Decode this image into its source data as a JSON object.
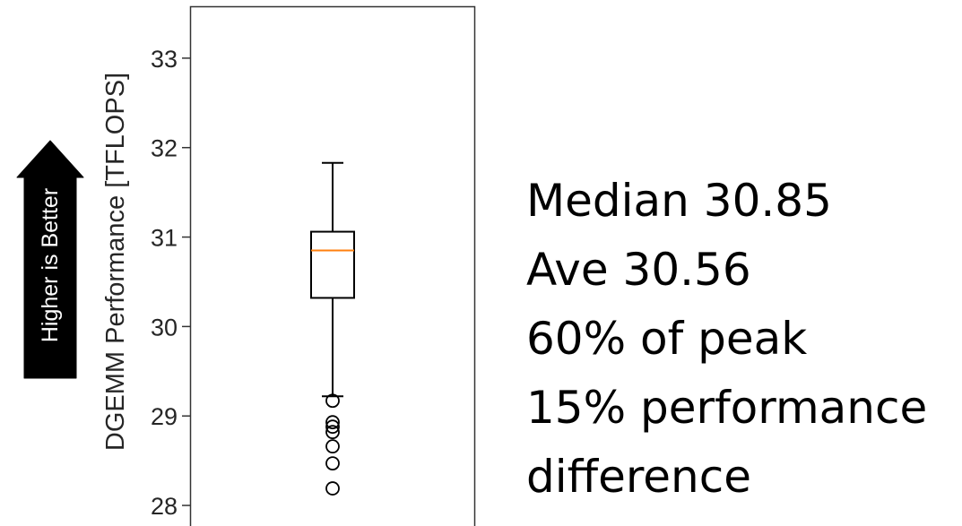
{
  "chart_data": {
    "type": "box",
    "ylabel": "DGEMM Performance [TFLOPS]",
    "ylim": [
      27.77,
      33.58
    ],
    "yticks": [
      28,
      29,
      30,
      31,
      32,
      33
    ],
    "grid": false,
    "box": {
      "whisker_low": 29.22,
      "q1": 30.32,
      "median": 30.85,
      "q3": 31.06,
      "whisker_high": 31.83,
      "outliers": [
        29.17,
        28.93,
        28.88,
        28.82,
        28.66,
        28.47,
        28.19
      ]
    },
    "colors": {
      "median": "#ff7f0e",
      "box": "#000000",
      "arrow": "#000000"
    }
  },
  "arrow_label": "Higher is Better",
  "notes": [
    "Median 30.85",
    "Ave 30.56",
    "60% of peak",
    "15% performance",
    "difference"
  ]
}
